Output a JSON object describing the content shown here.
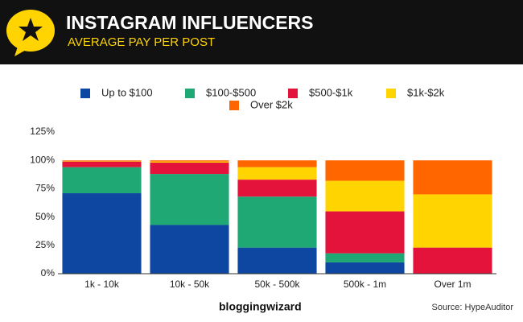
{
  "chart_data": {
    "type": "stacked_bar",
    "title": "INSTAGRAM INFLUENCERS",
    "subtitle": "AVERAGE PAY PER POST",
    "categories": [
      "1k - 10k",
      "10k - 50k",
      "50k - 500k",
      "500k - 1m",
      "Over 1m"
    ],
    "series": [
      {
        "name": "Up to $100",
        "color": "#0d47a1",
        "values": [
          71,
          43,
          23,
          10,
          0
        ]
      },
      {
        "name": "$100-$500",
        "color": "#1fa774",
        "values": [
          23,
          45,
          45,
          8,
          0
        ]
      },
      {
        "name": "$500-$1k",
        "color": "#e3133c",
        "values": [
          5,
          10,
          15,
          37,
          23
        ]
      },
      {
        "name": "$1k-$2k",
        "color": "#ffd400",
        "values": [
          0.5,
          1,
          11,
          27,
          47
        ]
      },
      {
        "name": "Over $2k",
        "color": "#ff6600",
        "values": [
          0.5,
          1,
          6,
          18,
          30
        ]
      }
    ],
    "ylim": [
      0,
      125
    ],
    "yticks": [
      {
        "value": 0,
        "label": "0%"
      },
      {
        "value": 25,
        "label": "25%"
      },
      {
        "value": 50,
        "label": "50%"
      },
      {
        "value": 75,
        "label": "75%"
      },
      {
        "value": 100,
        "label": "100%"
      },
      {
        "value": 125,
        "label": "125%"
      }
    ],
    "brand": "bloggingwizard",
    "source": "Source: HypeAuditor"
  }
}
